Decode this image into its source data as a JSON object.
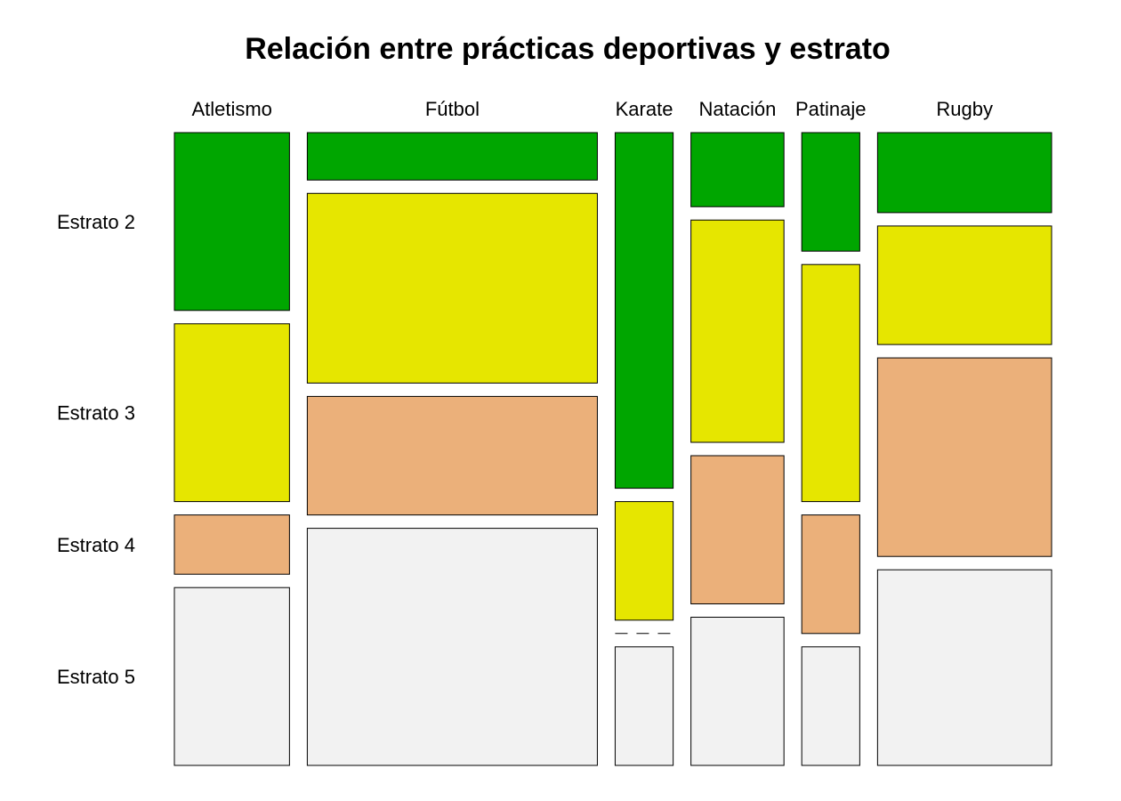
{
  "chart_data": {
    "type": "mosaic",
    "title": "Relación entre prácticas deportivas y estrato",
    "xlabel": "",
    "ylabel": "",
    "categories": [
      "Atletismo",
      "Fútbol",
      "Karate",
      "Natación",
      "Patinaje",
      "Rugby"
    ],
    "strata": [
      "Estrato 2",
      "Estrato 3",
      "Estrato 4",
      "Estrato 5"
    ],
    "column_share": [
      0.125,
      0.315,
      0.063,
      0.101,
      0.063,
      0.189
    ],
    "proportions": [
      [
        0.3,
        0.3,
        0.1,
        0.3
      ],
      [
        0.08,
        0.32,
        0.2,
        0.4
      ],
      [
        0.6,
        0.2,
        0.0,
        0.2
      ],
      [
        0.125,
        0.375,
        0.25,
        0.25
      ],
      [
        0.2,
        0.4,
        0.2,
        0.2
      ],
      [
        0.135,
        0.2,
        0.335,
        0.33
      ]
    ],
    "colors": {
      "Estrato 2": "#00a600",
      "Estrato 3": "#e6e600",
      "Estrato 4": "#ebb07a",
      "Estrato 5": "#f2f2f2"
    },
    "grid": false,
    "legend": "none"
  }
}
